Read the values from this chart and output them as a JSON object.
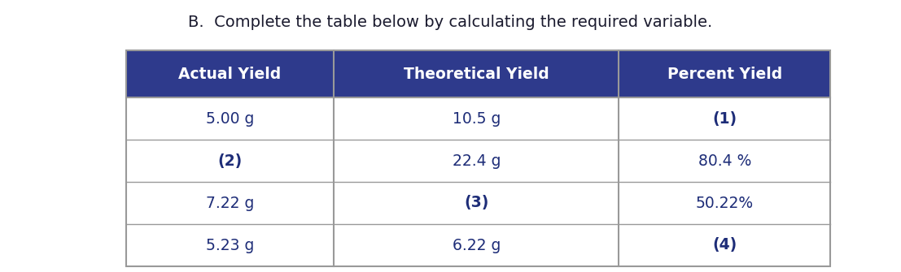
{
  "title": "B.  Complete the table below by calculating the required variable.",
  "title_color": "#1a1a2e",
  "title_fontsize": 14,
  "header_bg": "#2e3a8c",
  "header_text_color": "#ffffff",
  "header_fontsize": 13.5,
  "cell_text_color": "#1e2d78",
  "cell_fontsize": 13.5,
  "cell_bg": "#ffffff",
  "border_color": "#999999",
  "columns": [
    "Actual Yield",
    "Theoretical Yield",
    "Percent Yield"
  ],
  "rows": [
    [
      "5.00 g",
      "10.5 g",
      "(1)"
    ],
    [
      "(2)",
      "22.4 g",
      "80.4 %"
    ],
    [
      "7.22 g",
      "(3)",
      "50.22%"
    ],
    [
      "5.23 g",
      "6.22 g",
      "(4)"
    ]
  ]
}
